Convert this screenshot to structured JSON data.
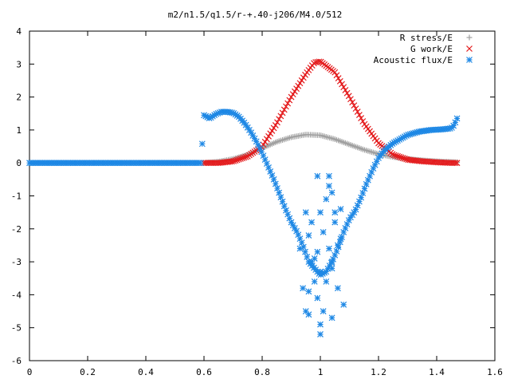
{
  "chart_data": {
    "type": "scatter",
    "title": "m2/n1.5/q1.5/r-+.40-j206/M4.0/512",
    "xlabel": "",
    "ylabel": "",
    "xlim": [
      0,
      1.6
    ],
    "ylim": [
      -6,
      4
    ],
    "xticks": [
      0,
      0.2,
      0.4,
      0.6,
      0.8,
      1,
      1.2,
      1.4,
      1.6
    ],
    "xtick_labels": [
      "0",
      "0.2",
      "0.4",
      "0.6",
      "0.8",
      "1",
      "1.2",
      "1.4",
      "1.6"
    ],
    "yticks": [
      -6,
      -5,
      -4,
      -3,
      -2,
      -1,
      0,
      1,
      2,
      3,
      4
    ],
    "ytick_labels": [
      "-6",
      "-5",
      "-4",
      "-3",
      "-2",
      "-1",
      "0",
      "1",
      "2",
      "3",
      "4"
    ],
    "grid": false,
    "legend_position": "top-right",
    "series": [
      {
        "name": "R stress/E",
        "marker": "plus",
        "color": "#a0a0a0",
        "x": [
          0.6,
          0.65,
          0.7,
          0.75,
          0.8,
          0.85,
          0.9,
          0.95,
          1.0,
          1.05,
          1.1,
          1.15,
          1.2,
          1.25,
          1.3,
          1.35,
          1.4,
          1.45,
          1.47
        ],
        "y": [
          0.0,
          0.04,
          0.12,
          0.25,
          0.45,
          0.64,
          0.78,
          0.86,
          0.84,
          0.72,
          0.56,
          0.4,
          0.27,
          0.18,
          0.12,
          0.08,
          0.05,
          0.03,
          0.02
        ]
      },
      {
        "name": "G work/E",
        "marker": "cross",
        "color": "#e41a1c",
        "x": [
          0.6,
          0.65,
          0.7,
          0.75,
          0.8,
          0.85,
          0.9,
          0.95,
          0.98,
          1.0,
          1.05,
          1.1,
          1.15,
          1.2,
          1.25,
          1.3,
          1.35,
          1.4,
          1.45,
          1.47
        ],
        "y": [
          0.0,
          0.0,
          0.05,
          0.2,
          0.5,
          1.2,
          2.0,
          2.7,
          3.05,
          3.08,
          2.75,
          2.0,
          1.2,
          0.6,
          0.25,
          0.1,
          0.05,
          0.02,
          0.0,
          0.0
        ]
      },
      {
        "name": "Acoustic flux/E",
        "marker": "asterisk",
        "color": "#1e88e5",
        "x": [
          0.0,
          0.05,
          0.1,
          0.15,
          0.2,
          0.25,
          0.3,
          0.35,
          0.4,
          0.45,
          0.5,
          0.55,
          0.59,
          0.6,
          0.62,
          0.64,
          0.66,
          0.68,
          0.7,
          0.72,
          0.74,
          0.76,
          0.78,
          0.8,
          0.82,
          0.84,
          0.86,
          0.88,
          0.9,
          0.92,
          0.94,
          0.96,
          0.98,
          1.0,
          1.02,
          1.04,
          1.06,
          1.08,
          1.1,
          1.12,
          1.14,
          1.16,
          1.18,
          1.2,
          1.22,
          1.25,
          1.28,
          1.3,
          1.34,
          1.38,
          1.42,
          1.45,
          1.46,
          1.47
        ],
        "y": [
          0.0,
          0.0,
          0.0,
          0.0,
          0.0,
          0.0,
          0.0,
          0.0,
          0.0,
          0.0,
          0.0,
          0.0,
          0.0,
          1.45,
          1.35,
          1.48,
          1.55,
          1.55,
          1.52,
          1.4,
          1.2,
          0.95,
          0.65,
          0.3,
          -0.1,
          -0.5,
          -0.95,
          -1.4,
          -1.8,
          -2.1,
          -2.5,
          -3.0,
          -3.2,
          -3.4,
          -3.3,
          -3.0,
          -2.6,
          -2.1,
          -1.7,
          -1.45,
          -1.05,
          -0.6,
          -0.2,
          0.15,
          0.38,
          0.6,
          0.75,
          0.85,
          0.95,
          1.0,
          1.02,
          1.05,
          1.15,
          1.35
        ]
      },
      {
        "name": "",
        "marker": "asterisk",
        "color": "#1e88e5",
        "x": [
          0.93,
          0.94,
          0.95,
          0.95,
          0.96,
          0.96,
          0.97,
          0.97,
          0.98,
          0.98,
          0.99,
          0.99,
          1.0,
          1.0,
          1.0,
          1.01,
          1.01,
          1.02,
          1.02,
          1.03,
          1.03,
          1.04,
          1.04,
          1.04,
          1.05,
          1.06,
          1.06,
          1.07,
          1.07,
          1.08,
          0.99,
          1.0,
          1.03,
          1.04,
          0.96,
          1.05
        ],
        "y": [
          -2.6,
          -3.8,
          -4.5,
          -1.5,
          -2.2,
          -4.6,
          -3.0,
          -1.8,
          -3.6,
          -2.9,
          -4.1,
          -2.7,
          -4.9,
          -5.2,
          -3.3,
          -2.1,
          -4.5,
          -1.1,
          -3.6,
          -0.4,
          -2.6,
          -4.7,
          -3.0,
          -0.9,
          -1.5,
          -2.5,
          -3.8,
          -2.3,
          -1.4,
          -4.3,
          -0.4,
          -1.5,
          -0.7,
          -3.2,
          -3.9,
          -1.8
        ]
      }
    ]
  }
}
